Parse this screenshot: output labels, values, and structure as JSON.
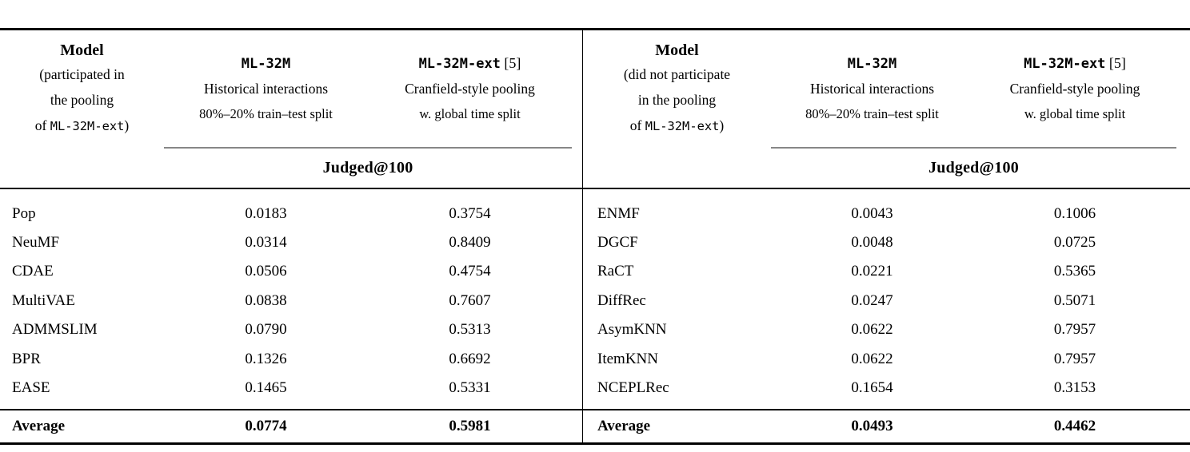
{
  "page": {
    "background": "#ffffff",
    "text_color": "#000000",
    "rule_color": "#000000",
    "cmidrule_color": "#878787"
  },
  "table": {
    "halves": [
      {
        "model_header": {
          "title": "Model",
          "line1": "(participated in",
          "line2": "the pooling",
          "line3_prefix": "of ",
          "line3_mono": "ML-32M-ext",
          "line3_suffix": ")"
        },
        "col1": {
          "name": "ML-32M",
          "suffix": "",
          "line1": "Historical interactions",
          "line2": "80%–20% train–test split"
        },
        "col2": {
          "name": "ML-32M-ext",
          "suffix": " [5]",
          "line1": "Cranfield-style pooling",
          "line2": "w. global time split"
        },
        "metric": "Judged@100",
        "rows": [
          {
            "model": "Pop",
            "v1": "0.0183",
            "v2": "0.3754"
          },
          {
            "model": "NeuMF",
            "v1": "0.0314",
            "v2": "0.8409"
          },
          {
            "model": "CDAE",
            "v1": "0.0506",
            "v2": "0.4754"
          },
          {
            "model": "MultiVAE",
            "v1": "0.0838",
            "v2": "0.7607"
          },
          {
            "model": "ADMMSLIM",
            "v1": "0.0790",
            "v2": "0.5313"
          },
          {
            "model": "BPR",
            "v1": "0.1326",
            "v2": "0.6692"
          },
          {
            "model": "EASE",
            "v1": "0.1465",
            "v2": "0.5331"
          }
        ],
        "average": {
          "label": "Average",
          "v1": "0.0774",
          "v2": "0.5981"
        }
      },
      {
        "model_header": {
          "title": "Model",
          "line1": "(did not participate",
          "line2": "in the pooling",
          "line3_prefix": "of ",
          "line3_mono": "ML-32M-ext",
          "line3_suffix": ")"
        },
        "col1": {
          "name": "ML-32M",
          "suffix": "",
          "line1": "Historical interactions",
          "line2": "80%–20% train–test split"
        },
        "col2": {
          "name": "ML-32M-ext",
          "suffix": " [5]",
          "line1": "Cranfield-style pooling",
          "line2": "w. global time split"
        },
        "metric": "Judged@100",
        "rows": [
          {
            "model": "ENMF",
            "v1": "0.0043",
            "v2": "0.1006"
          },
          {
            "model": "DGCF",
            "v1": "0.0048",
            "v2": "0.0725"
          },
          {
            "model": "RaCT",
            "v1": "0.0221",
            "v2": "0.5365"
          },
          {
            "model": "DiffRec",
            "v1": "0.0247",
            "v2": "0.5071"
          },
          {
            "model": "AsymKNN",
            "v1": "0.0622",
            "v2": "0.7957"
          },
          {
            "model": "ItemKNN",
            "v1": "0.0622",
            "v2": "0.7957"
          },
          {
            "model": "NCEPLRec",
            "v1": "0.1654",
            "v2": "0.3153"
          }
        ],
        "average": {
          "label": "Average",
          "v1": "0.0493",
          "v2": "0.4462"
        }
      }
    ]
  }
}
